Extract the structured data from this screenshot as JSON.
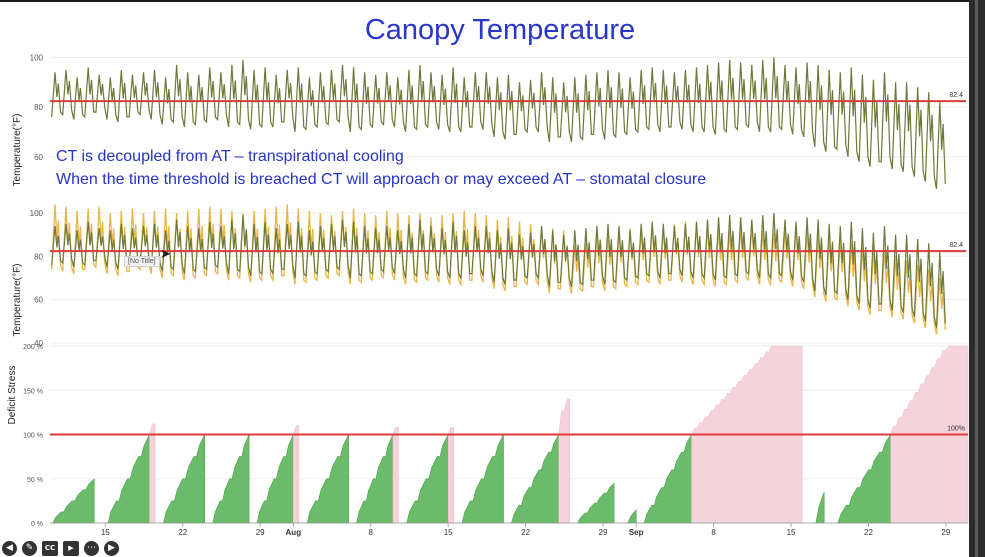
{
  "slide": {
    "title": "Canopy Temperature",
    "notes": [
      "CT is decoupled from AT – transpirational cooling",
      "When the time threshold is breached CT will approach or may exceed AT – stomatal closure"
    ],
    "tooltip": "[No Title]"
  },
  "toolbar": {
    "icons": [
      "back-icon",
      "pen-icon",
      "closed-captions-icon",
      "camera-off-icon",
      "more-icon",
      "forward-icon"
    ],
    "cc_label": "CC"
  },
  "colors": {
    "canopy": "#6b7a3a",
    "air": "#e8b74a",
    "threshold": "#dd3a3a",
    "stress_ok": "#6abb6a",
    "stress_over": "#f5d3da",
    "title": "#2a35c9"
  },
  "chart_data": [
    {
      "type": "line",
      "x_range": [
        "2025-07-10",
        "2025-10-01"
      ],
      "ylabel": "Temperature(°F)",
      "ylim": [
        45,
        103
      ],
      "yticks": [
        60,
        80,
        100
      ],
      "threshold": 82.4,
      "threshold_label": "82.4",
      "series": [
        {
          "key": "canopy",
          "daily_high": [
            94,
            95,
            92,
            96,
            93,
            92,
            95,
            93,
            94,
            95,
            92,
            97,
            94,
            93,
            96,
            94,
            97,
            99,
            95,
            96,
            93,
            95,
            96,
            92,
            94,
            95,
            97,
            96,
            94,
            93,
            94,
            92,
            95,
            97,
            94,
            93,
            96,
            92,
            94,
            94,
            92,
            93,
            90,
            91,
            94,
            92,
            90,
            92,
            93,
            94,
            95,
            94,
            92,
            95,
            96,
            95,
            94,
            95,
            96,
            97,
            98,
            99,
            98,
            97,
            99,
            100,
            97,
            96,
            98,
            97,
            95,
            94,
            96,
            93,
            91,
            94,
            90,
            90,
            88,
            86,
            82
          ],
          "daily_low": [
            76,
            77,
            75,
            76,
            78,
            75,
            74,
            76,
            77,
            75,
            73,
            74,
            72,
            73,
            74,
            75,
            72,
            73,
            71,
            72,
            72,
            74,
            70,
            71,
            72,
            73,
            74,
            70,
            71,
            72,
            73,
            72,
            70,
            71,
            72,
            71,
            70,
            70,
            72,
            71,
            68,
            67,
            69,
            70,
            70,
            66,
            68,
            66,
            67,
            69,
            67,
            68,
            69,
            70,
            71,
            70,
            72,
            71,
            70,
            70,
            69,
            70,
            71,
            72,
            70,
            70,
            71,
            69,
            68,
            64,
            62,
            63,
            60,
            58,
            56,
            58,
            55,
            54,
            52,
            50,
            47
          ]
        }
      ]
    },
    {
      "type": "line",
      "x_range": [
        "2025-07-10",
        "2025-10-01"
      ],
      "ylabel": "Temperature(°F)",
      "ylim": [
        40,
        106
      ],
      "yticks": [
        40,
        60,
        80,
        100
      ],
      "threshold": 82.4,
      "threshold_label": "82.4",
      "series": [
        {
          "key": "canopy",
          "daily_high": [
            94,
            95,
            92,
            96,
            93,
            92,
            95,
            93,
            94,
            95,
            92,
            97,
            94,
            93,
            96,
            94,
            97,
            99,
            95,
            96,
            93,
            95,
            96,
            92,
            94,
            95,
            97,
            96,
            94,
            93,
            94,
            92,
            95,
            97,
            94,
            93,
            96,
            92,
            94,
            94,
            92,
            93,
            90,
            91,
            94,
            92,
            90,
            92,
            93,
            94,
            95,
            94,
            92,
            95,
            96,
            95,
            94,
            95,
            96,
            97,
            98,
            99,
            98,
            97,
            99,
            100,
            97,
            96,
            98,
            97,
            95,
            94,
            96,
            93,
            91,
            94,
            90,
            90,
            88,
            86,
            82
          ],
          "daily_low": [
            76,
            77,
            75,
            76,
            78,
            75,
            74,
            76,
            77,
            75,
            73,
            74,
            72,
            73,
            74,
            75,
            72,
            73,
            71,
            72,
            72,
            74,
            70,
            71,
            72,
            73,
            74,
            70,
            71,
            72,
            73,
            72,
            70,
            71,
            72,
            71,
            70,
            70,
            72,
            71,
            68,
            67,
            69,
            70,
            70,
            66,
            68,
            66,
            67,
            69,
            67,
            68,
            69,
            70,
            71,
            70,
            72,
            71,
            70,
            70,
            69,
            70,
            71,
            72,
            70,
            70,
            71,
            69,
            68,
            64,
            62,
            63,
            60,
            58,
            56,
            58,
            55,
            54,
            52,
            50,
            47
          ]
        },
        {
          "key": "air",
          "daily_high": [
            104,
            103,
            101,
            102,
            103,
            100,
            101,
            102,
            100,
            101,
            102,
            100,
            101,
            102,
            103,
            102,
            101,
            100,
            101,
            102,
            103,
            104,
            102,
            101,
            100,
            99,
            101,
            102,
            100,
            99,
            101,
            100,
            99,
            100,
            98,
            99,
            100,
            101,
            100,
            99,
            97,
            98,
            96,
            95,
            94,
            93,
            92,
            85,
            88,
            90,
            91,
            92,
            93,
            92,
            94,
            93,
            95,
            96,
            95,
            94,
            93,
            92,
            93,
            94,
            92,
            91,
            92,
            93,
            92,
            91,
            90,
            88,
            87,
            85,
            84,
            83,
            80,
            78,
            76,
            74,
            70
          ],
          "daily_low": [
            74,
            73,
            72,
            74,
            75,
            72,
            71,
            73,
            74,
            72,
            70,
            71,
            69,
            70,
            71,
            72,
            69,
            70,
            68,
            69,
            69,
            71,
            67,
            68,
            69,
            70,
            71,
            67,
            68,
            69,
            70,
            69,
            67,
            68,
            69,
            68,
            67,
            67,
            69,
            68,
            65,
            64,
            66,
            67,
            67,
            63,
            65,
            63,
            64,
            66,
            64,
            65,
            66,
            67,
            68,
            67,
            69,
            68,
            67,
            67,
            66,
            67,
            68,
            69,
            67,
            67,
            68,
            66,
            65,
            61,
            59,
            60,
            57,
            55,
            53,
            55,
            52,
            51,
            49,
            47,
            44
          ]
        }
      ]
    },
    {
      "type": "area",
      "ylabel": "Deficit Stress",
      "ylim": [
        0,
        200
      ],
      "yticks": [
        "0 %",
        "50 %",
        "100 %",
        "150 %",
        "200 %"
      ],
      "threshold": 100,
      "threshold_label": "100%",
      "xticks": [
        "15",
        "22",
        "29",
        "Aug",
        "8",
        "15",
        "22",
        "29",
        "Sep",
        "8",
        "15",
        "22",
        "29"
      ],
      "xtick_dates": [
        "2025-07-15",
        "2025-07-22",
        "2025-07-29",
        "2025-08-01",
        "2025-08-08",
        "2025-08-15",
        "2025-08-22",
        "2025-08-29",
        "2025-09-01",
        "2025-09-08",
        "2025-09-15",
        "2025-09-22",
        "2025-09-29"
      ],
      "x_range": [
        "2025-07-10",
        "2025-10-01"
      ],
      "cycles": [
        {
          "start": "2025-07-10",
          "end": "2025-07-14",
          "peak": 50
        },
        {
          "start": "2025-07-15",
          "end": "2025-07-19",
          "peak": 100,
          "over_peak": 112,
          "over_end": "2025-07-19T12:00"
        },
        {
          "start": "2025-07-20",
          "end": "2025-07-24",
          "peak": 100
        },
        {
          "start": "2025-07-24T12:00",
          "end": "2025-07-28",
          "peak": 100
        },
        {
          "start": "2025-07-28T12:00",
          "end": "2025-08-01",
          "peak": 100,
          "over_peak": 110,
          "over_end": "2025-08-01T12:00"
        },
        {
          "start": "2025-08-02",
          "end": "2025-08-06",
          "peak": 100
        },
        {
          "start": "2025-08-06T12:00",
          "end": "2025-08-10",
          "peak": 100,
          "over_peak": 108,
          "over_end": "2025-08-10T12:00"
        },
        {
          "start": "2025-08-11",
          "end": "2025-08-15",
          "peak": 100,
          "over_peak": 108,
          "over_end": "2025-08-15T12:00"
        },
        {
          "start": "2025-08-16",
          "end": "2025-08-20",
          "peak": 100
        },
        {
          "start": "2025-08-20T12:00",
          "end": "2025-08-25",
          "peak": 100,
          "over_peak": 140,
          "over_end": "2025-08-26"
        },
        {
          "start": "2025-08-26T12:00",
          "end": "2025-08-30",
          "peak": 45
        },
        {
          "start": "2025-08-31",
          "end": "2025-09-01",
          "peak": 15
        },
        {
          "start": "2025-09-01T12:00",
          "end": "2025-09-06",
          "peak": 100,
          "over_peak": 200,
          "over_end": "2025-09-16"
        },
        {
          "start": "2025-09-17",
          "end": "2025-09-18",
          "peak": 35
        },
        {
          "start": "2025-09-19",
          "end": "2025-09-24",
          "peak": 100,
          "over_peak": 200,
          "over_end": "2025-10-01"
        }
      ]
    }
  ]
}
